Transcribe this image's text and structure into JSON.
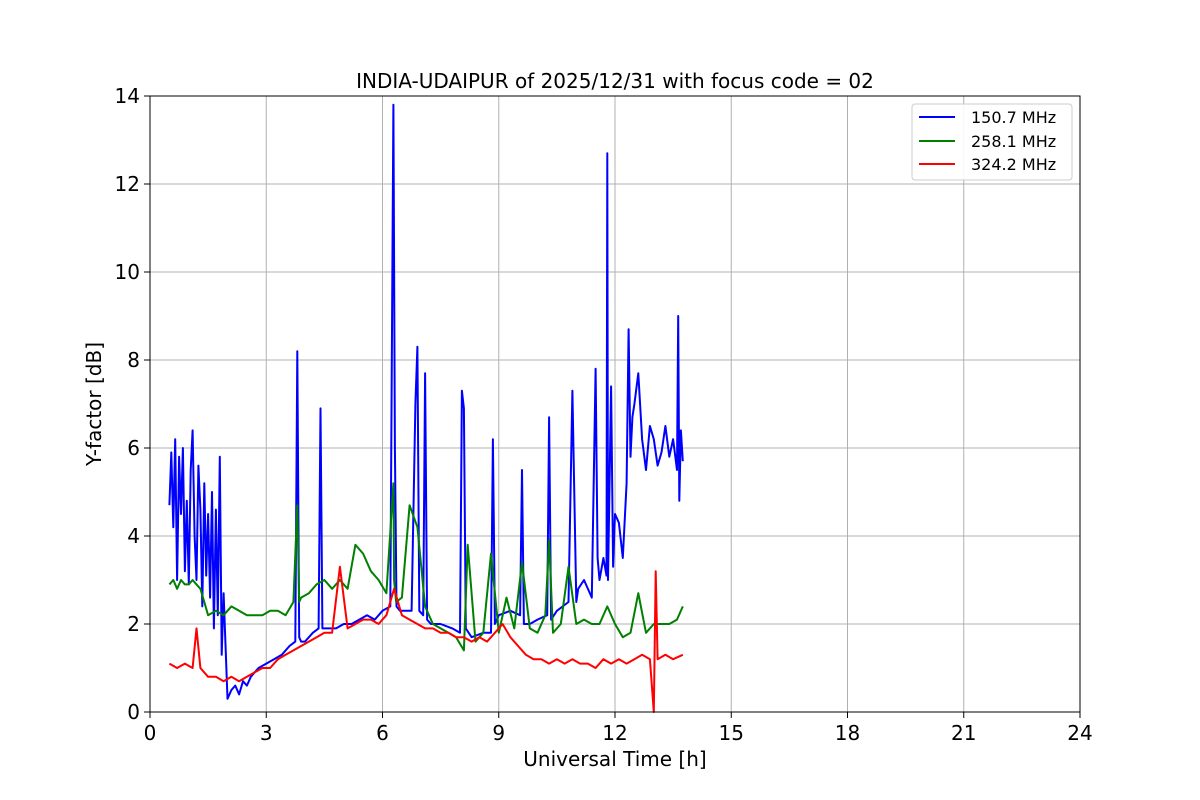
{
  "chart_data": {
    "type": "line",
    "title": "INDIA-UDAIPUR of 2025/12/31 with focus code = 02",
    "xlabel": "Universal Time [h]",
    "ylabel": "Y-factor [dB]",
    "xlim": [
      0,
      24
    ],
    "ylim": [
      0,
      14
    ],
    "xticks": [
      0,
      3,
      6,
      9,
      12,
      15,
      18,
      21,
      24
    ],
    "yticks": [
      0,
      2,
      4,
      6,
      8,
      10,
      12,
      14
    ],
    "grid": true,
    "legend_position": "top-right",
    "series": [
      {
        "name": "150.7 MHz",
        "color": "#0000ff",
        "x": [
          0.5,
          0.55,
          0.6,
          0.65,
          0.7,
          0.75,
          0.8,
          0.85,
          0.9,
          0.95,
          1.0,
          1.05,
          1.1,
          1.15,
          1.2,
          1.25,
          1.3,
          1.35,
          1.4,
          1.45,
          1.5,
          1.55,
          1.6,
          1.65,
          1.7,
          1.75,
          1.8,
          1.85,
          1.9,
          2.0,
          2.1,
          2.2,
          2.3,
          2.4,
          2.5,
          2.6,
          2.7,
          2.8,
          3.0,
          3.2,
          3.4,
          3.6,
          3.75,
          3.8,
          3.85,
          3.9,
          4.0,
          4.2,
          4.35,
          4.4,
          4.45,
          4.6,
          4.8,
          5.0,
          5.2,
          5.4,
          5.6,
          5.8,
          6.0,
          6.2,
          6.28,
          6.32,
          6.36,
          6.45,
          6.6,
          6.75,
          6.85,
          6.9,
          6.95,
          7.05,
          7.1,
          7.15,
          7.25,
          7.5,
          7.8,
          8.0,
          8.05,
          8.1,
          8.15,
          8.3,
          8.6,
          8.8,
          8.85,
          8.9,
          9.0,
          9.3,
          9.55,
          9.6,
          9.65,
          9.8,
          10.0,
          10.25,
          10.3,
          10.35,
          10.5,
          10.8,
          10.9,
          11.0,
          11.05,
          11.2,
          11.4,
          11.5,
          11.55,
          11.6,
          11.7,
          11.78,
          11.8,
          11.82,
          11.9,
          11.95,
          12.0,
          12.1,
          12.2,
          12.3,
          12.35,
          12.4,
          12.45,
          12.5,
          12.6,
          12.7,
          12.8,
          12.9,
          13.0,
          13.1,
          13.2,
          13.3,
          13.4,
          13.5,
          13.6,
          13.63,
          13.66,
          13.7,
          13.75
        ],
        "y": [
          4.7,
          5.9,
          4.2,
          6.2,
          3.0,
          5.8,
          4.5,
          6.0,
          3.2,
          4.8,
          2.9,
          5.5,
          6.4,
          4.0,
          3.0,
          5.6,
          4.6,
          2.4,
          5.2,
          3.1,
          4.5,
          2.6,
          5.0,
          1.9,
          4.6,
          2.2,
          5.8,
          1.3,
          2.7,
          0.3,
          0.5,
          0.6,
          0.4,
          0.7,
          0.6,
          0.8,
          0.9,
          1.0,
          1.1,
          1.2,
          1.3,
          1.5,
          1.6,
          8.2,
          1.7,
          1.6,
          1.6,
          1.8,
          1.9,
          6.9,
          1.9,
          1.9,
          1.9,
          2.0,
          2.0,
          2.1,
          2.2,
          2.1,
          2.3,
          2.4,
          13.8,
          6.0,
          2.4,
          2.3,
          2.3,
          2.3,
          7.0,
          8.3,
          2.3,
          2.2,
          7.7,
          2.1,
          2.0,
          2.0,
          1.9,
          1.8,
          7.3,
          6.9,
          1.9,
          1.7,
          1.8,
          1.8,
          6.2,
          2.0,
          2.2,
          2.3,
          2.2,
          5.5,
          2.0,
          2.0,
          2.1,
          2.2,
          6.7,
          2.1,
          2.3,
          2.5,
          7.3,
          2.5,
          2.8,
          3.0,
          2.6,
          7.8,
          3.5,
          3.0,
          3.5,
          3.1,
          12.7,
          3.0,
          7.4,
          3.3,
          4.5,
          4.3,
          3.5,
          5.2,
          8.7,
          5.8,
          6.7,
          7.0,
          7.7,
          6.2,
          5.5,
          6.5,
          6.2,
          5.6,
          5.9,
          6.5,
          5.8,
          6.2,
          5.5,
          9.0,
          4.8,
          6.4,
          5.7
        ]
      },
      {
        "name": "258.1 MHz",
        "color": "#008000",
        "x": [
          0.5,
          0.6,
          0.7,
          0.8,
          0.9,
          1.0,
          1.1,
          1.2,
          1.3,
          1.4,
          1.5,
          1.7,
          1.9,
          2.1,
          2.3,
          2.5,
          2.7,
          2.9,
          3.1,
          3.3,
          3.5,
          3.7,
          3.8,
          3.85,
          3.9,
          4.1,
          4.3,
          4.5,
          4.7,
          4.9,
          5.1,
          5.3,
          5.5,
          5.7,
          5.9,
          6.1,
          6.28,
          6.3,
          6.35,
          6.5,
          6.7,
          6.9,
          7.1,
          7.3,
          7.5,
          7.7,
          7.9,
          8.1,
          8.2,
          8.4,
          8.6,
          8.8,
          9.0,
          9.2,
          9.4,
          9.6,
          9.8,
          10.0,
          10.2,
          10.3,
          10.4,
          10.6,
          10.8,
          11.0,
          11.2,
          11.4,
          11.6,
          11.8,
          12.0,
          12.2,
          12.4,
          12.6,
          12.8,
          13.0,
          13.2,
          13.4,
          13.6,
          13.75
        ],
        "y": [
          2.9,
          3.0,
          2.8,
          3.0,
          2.9,
          2.9,
          3.0,
          2.9,
          2.8,
          2.5,
          2.2,
          2.3,
          2.2,
          2.4,
          2.3,
          2.2,
          2.2,
          2.2,
          2.3,
          2.3,
          2.2,
          2.5,
          4.7,
          2.5,
          2.6,
          2.7,
          2.9,
          3.0,
          2.8,
          3.0,
          2.8,
          3.8,
          3.6,
          3.2,
          3.0,
          2.7,
          5.2,
          3.0,
          2.5,
          2.6,
          4.7,
          4.2,
          2.4,
          2.0,
          1.9,
          1.8,
          1.7,
          1.4,
          3.8,
          1.6,
          1.8,
          3.6,
          1.8,
          2.6,
          1.9,
          3.4,
          1.9,
          1.8,
          2.2,
          3.9,
          1.8,
          2.0,
          3.3,
          2.0,
          2.1,
          2.0,
          2.0,
          2.4,
          2.0,
          1.7,
          1.8,
          2.7,
          1.8,
          2.0,
          2.0,
          2.0,
          2.1,
          2.4
        ]
      },
      {
        "name": "324.2 MHz",
        "color": "#ff0000",
        "x": [
          0.5,
          0.7,
          0.9,
          1.1,
          1.2,
          1.3,
          1.5,
          1.7,
          1.9,
          2.1,
          2.3,
          2.5,
          2.7,
          2.9,
          3.1,
          3.3,
          3.5,
          3.7,
          3.9,
          4.1,
          4.3,
          4.5,
          4.7,
          4.9,
          5.1,
          5.3,
          5.5,
          5.7,
          5.9,
          6.1,
          6.3,
          6.5,
          6.7,
          6.9,
          7.1,
          7.3,
          7.5,
          7.7,
          7.9,
          8.1,
          8.3,
          8.5,
          8.7,
          8.9,
          9.1,
          9.3,
          9.5,
          9.7,
          9.9,
          10.1,
          10.3,
          10.5,
          10.7,
          10.9,
          11.1,
          11.3,
          11.5,
          11.7,
          11.9,
          12.1,
          12.3,
          12.5,
          12.7,
          12.9,
          13.0,
          13.05,
          13.1,
          13.3,
          13.5,
          13.75
        ],
        "y": [
          1.1,
          1.0,
          1.1,
          1.0,
          1.9,
          1.0,
          0.8,
          0.8,
          0.7,
          0.8,
          0.7,
          0.8,
          0.9,
          1.0,
          1.0,
          1.2,
          1.3,
          1.4,
          1.5,
          1.6,
          1.7,
          1.8,
          1.8,
          3.3,
          1.9,
          2.0,
          2.1,
          2.1,
          2.0,
          2.2,
          2.8,
          2.2,
          2.1,
          2.0,
          1.9,
          1.9,
          1.8,
          1.8,
          1.7,
          1.7,
          1.6,
          1.7,
          1.6,
          1.8,
          2.0,
          1.7,
          1.5,
          1.3,
          1.2,
          1.2,
          1.1,
          1.2,
          1.1,
          1.2,
          1.1,
          1.1,
          1.0,
          1.2,
          1.1,
          1.2,
          1.1,
          1.2,
          1.3,
          1.2,
          0.0,
          3.2,
          1.2,
          1.3,
          1.2,
          1.3
        ]
      }
    ]
  }
}
